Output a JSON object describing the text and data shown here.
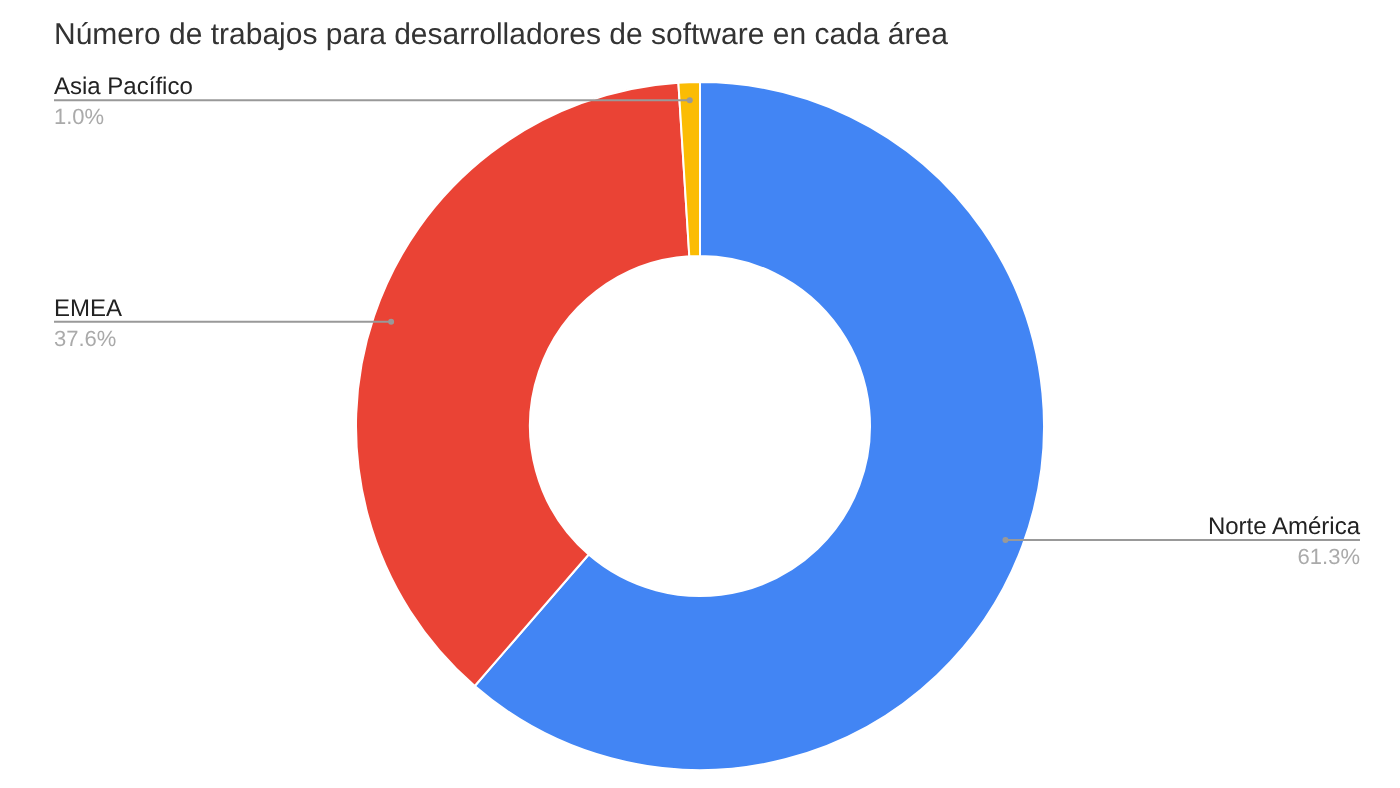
{
  "chart_data": {
    "type": "donut",
    "title": "Número de trabajos para desarrolladores de software en cada área",
    "categories": [
      "Norte América",
      "EMEA",
      "Asia Pacífico"
    ],
    "values": [
      61.3,
      37.6,
      1.0
    ],
    "colors": [
      "#4285f4",
      "#ea4335",
      "#fbbc04"
    ],
    "value_labels": [
      "61.3%",
      "37.6%",
      "1.0%"
    ]
  }
}
